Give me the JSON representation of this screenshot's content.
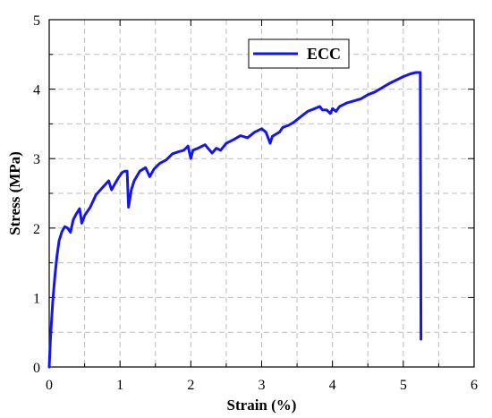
{
  "chart_data": {
    "type": "line",
    "xlabel": "Strain (%)",
    "ylabel": "Stress (MPa)",
    "xlim": [
      0,
      6
    ],
    "ylim": [
      0,
      5
    ],
    "x_ticks": [
      0,
      1,
      2,
      3,
      4,
      5,
      6
    ],
    "y_ticks": [
      0,
      1,
      2,
      3,
      4,
      5
    ],
    "x_tick_labels": [
      "0",
      "1",
      "2",
      "3",
      "4",
      "5",
      "6"
    ],
    "y_tick_labels": [
      "0",
      "1",
      "2",
      "3",
      "4",
      "5"
    ],
    "grid": true,
    "legend_position": "top-center",
    "series": [
      {
        "name": "ECC",
        "color": "#1515ee",
        "points": [
          [
            0.0,
            0.0
          ],
          [
            0.02,
            0.45
          ],
          [
            0.05,
            0.95
          ],
          [
            0.08,
            1.3
          ],
          [
            0.11,
            1.6
          ],
          [
            0.14,
            1.82
          ],
          [
            0.18,
            1.95
          ],
          [
            0.22,
            2.02
          ],
          [
            0.26,
            2.0
          ],
          [
            0.3,
            1.94
          ],
          [
            0.34,
            2.12
          ],
          [
            0.38,
            2.2
          ],
          [
            0.43,
            2.28
          ],
          [
            0.46,
            2.07
          ],
          [
            0.5,
            2.18
          ],
          [
            0.58,
            2.3
          ],
          [
            0.66,
            2.48
          ],
          [
            0.75,
            2.58
          ],
          [
            0.84,
            2.68
          ],
          [
            0.88,
            2.55
          ],
          [
            0.93,
            2.64
          ],
          [
            0.98,
            2.73
          ],
          [
            1.03,
            2.8
          ],
          [
            1.07,
            2.82
          ],
          [
            1.1,
            2.82
          ],
          [
            1.12,
            2.3
          ],
          [
            1.16,
            2.55
          ],
          [
            1.2,
            2.68
          ],
          [
            1.28,
            2.82
          ],
          [
            1.36,
            2.87
          ],
          [
            1.42,
            2.74
          ],
          [
            1.48,
            2.85
          ],
          [
            1.56,
            2.93
          ],
          [
            1.65,
            2.98
          ],
          [
            1.74,
            3.07
          ],
          [
            1.83,
            3.1
          ],
          [
            1.9,
            3.12
          ],
          [
            1.96,
            3.18
          ],
          [
            2.0,
            3.0
          ],
          [
            2.03,
            3.12
          ],
          [
            2.1,
            3.15
          ],
          [
            2.2,
            3.2
          ],
          [
            2.25,
            3.14
          ],
          [
            2.3,
            3.08
          ],
          [
            2.36,
            3.15
          ],
          [
            2.42,
            3.12
          ],
          [
            2.5,
            3.22
          ],
          [
            2.6,
            3.27
          ],
          [
            2.7,
            3.33
          ],
          [
            2.8,
            3.3
          ],
          [
            2.9,
            3.38
          ],
          [
            3.0,
            3.43
          ],
          [
            3.06,
            3.38
          ],
          [
            3.12,
            3.22
          ],
          [
            3.15,
            3.32
          ],
          [
            3.2,
            3.35
          ],
          [
            3.25,
            3.38
          ],
          [
            3.3,
            3.45
          ],
          [
            3.38,
            3.48
          ],
          [
            3.45,
            3.52
          ],
          [
            3.55,
            3.6
          ],
          [
            3.65,
            3.68
          ],
          [
            3.75,
            3.72
          ],
          [
            3.82,
            3.75
          ],
          [
            3.86,
            3.7
          ],
          [
            3.92,
            3.7
          ],
          [
            3.97,
            3.65
          ],
          [
            4.0,
            3.72
          ],
          [
            4.05,
            3.68
          ],
          [
            4.1,
            3.75
          ],
          [
            4.2,
            3.8
          ],
          [
            4.3,
            3.83
          ],
          [
            4.4,
            3.86
          ],
          [
            4.5,
            3.92
          ],
          [
            4.6,
            3.96
          ],
          [
            4.7,
            4.02
          ],
          [
            4.8,
            4.08
          ],
          [
            4.9,
            4.13
          ],
          [
            5.0,
            4.18
          ],
          [
            5.1,
            4.22
          ],
          [
            5.18,
            4.24
          ],
          [
            5.24,
            4.24
          ],
          [
            5.25,
            0.4
          ]
        ]
      }
    ]
  }
}
